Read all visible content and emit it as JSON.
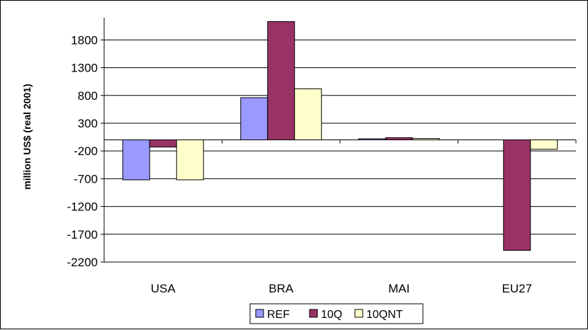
{
  "chart_data": {
    "type": "bar",
    "title": "",
    "xlabel": "",
    "ylabel": "million US$ (real 2001)",
    "categories": [
      "USA",
      "BRA",
      "MAI",
      "EU27"
    ],
    "series": [
      {
        "name": "REF",
        "color": "#9999FF",
        "values": [
          -720,
          760,
          20,
          0
        ]
      },
      {
        "name": "10Q",
        "color": "#993366",
        "values": [
          -130,
          2130,
          40,
          -1990
        ]
      },
      {
        "name": "10QNT",
        "color": "#FFFFCC",
        "values": [
          -720,
          920,
          25,
          -170
        ]
      }
    ],
    "yticks": [
      1800,
      1300,
      800,
      300,
      -200,
      -700,
      -1200,
      -1700,
      -2200
    ],
    "ylim": [
      -2200,
      2200
    ],
    "grid": true,
    "legend": "bottom-center"
  }
}
